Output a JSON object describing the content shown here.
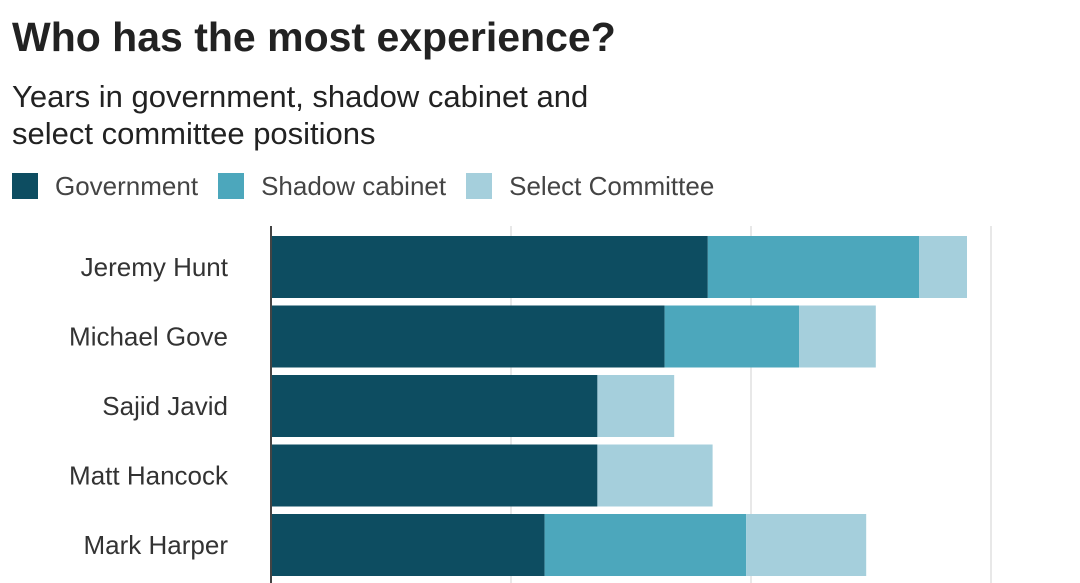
{
  "chart_data": {
    "type": "bar",
    "orientation": "horizontal",
    "stacked": true,
    "title": "Who has the most experience?",
    "subtitle_lines": [
      "Years in government, shadow cabinet and",
      "select committee positions"
    ],
    "categories": [
      "Jeremy Hunt",
      "Michael Gove",
      "Sajid Javid",
      "Matt Hancock",
      "Mark Harper"
    ],
    "series": [
      {
        "name": "Government",
        "color": "#0d4d61",
        "values": [
          9.1,
          8.2,
          6.8,
          6.8,
          5.7
        ]
      },
      {
        "name": "Shadow cabinet",
        "color": "#4ca7bc",
        "values": [
          4.4,
          2.8,
          0,
          0,
          4.2
        ]
      },
      {
        "name": "Select Committee",
        "color": "#a5cfdc",
        "values": [
          1.0,
          1.6,
          1.6,
          2.4,
          2.5
        ]
      }
    ],
    "xlim": [
      0,
      15
    ],
    "grid": true,
    "legend_position": "top-left"
  }
}
